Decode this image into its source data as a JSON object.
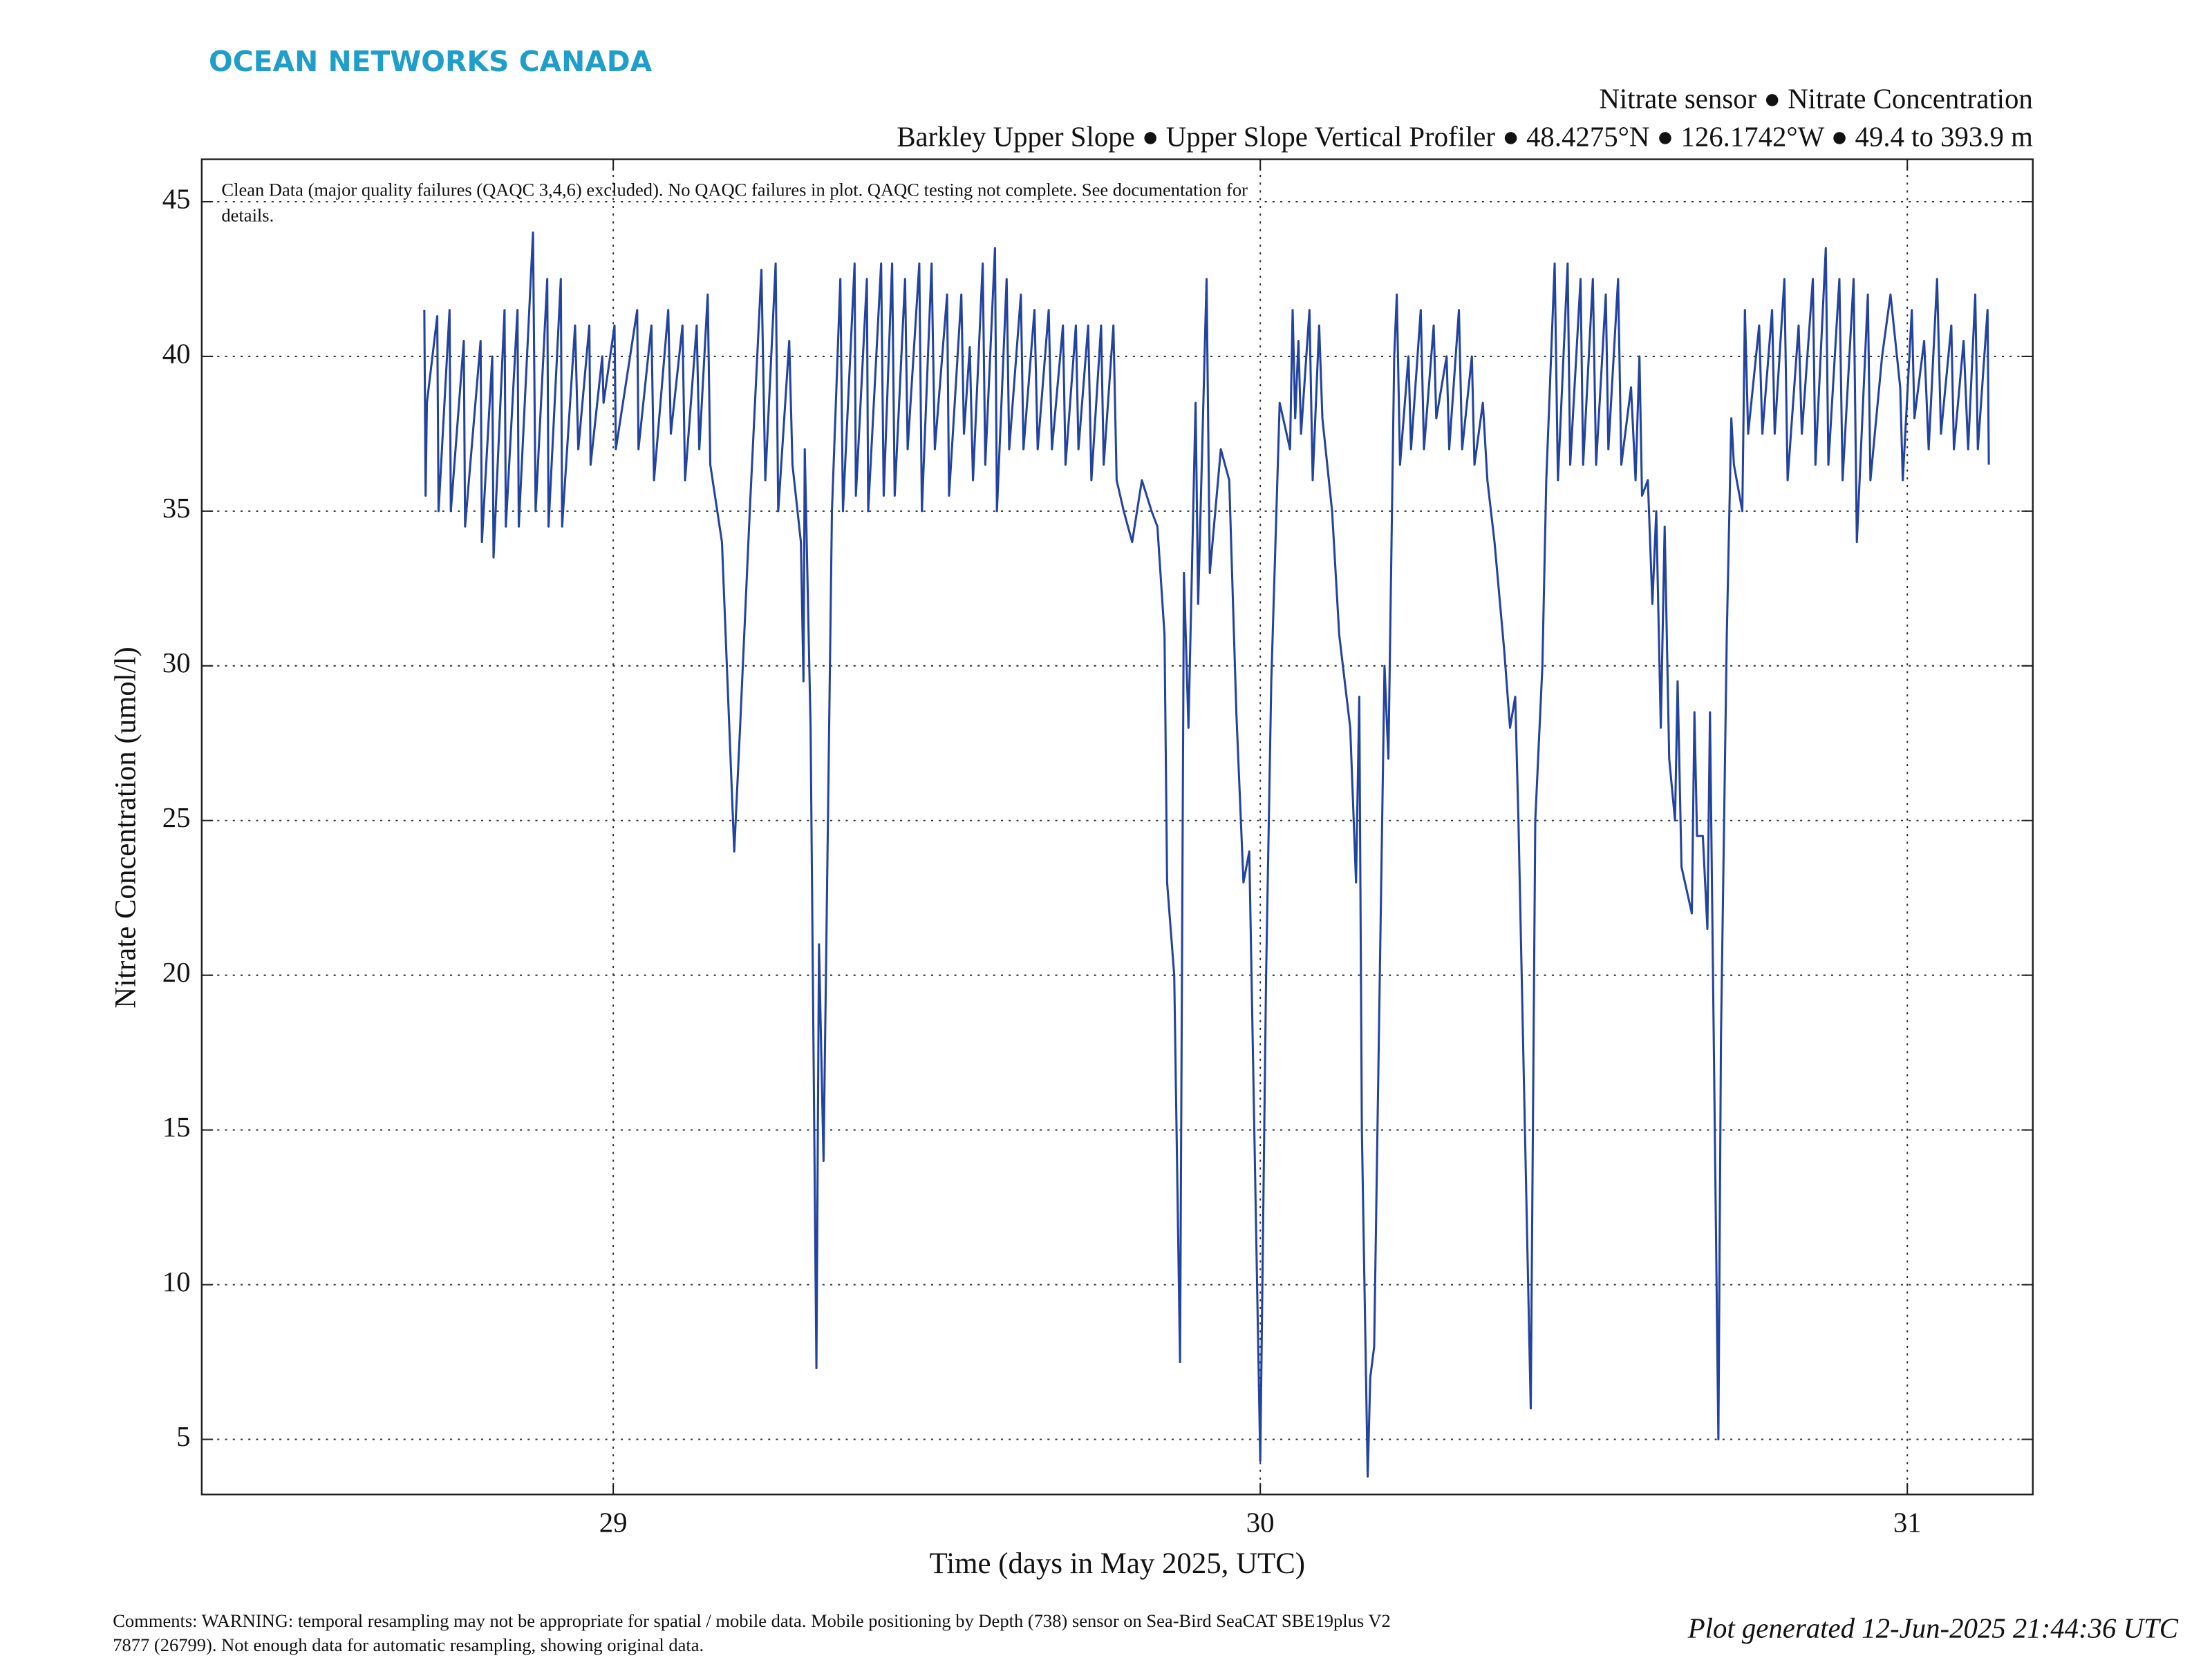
{
  "brand": "OCEAN NETWORKS CANADA",
  "chart_data": {
    "type": "line",
    "title": "Nitrate sensor ● Nitrate Concentration",
    "subtitle": "Barkley Upper Slope ● Upper Slope Vertical Profiler ● 48.4275°N ● 126.1742°W ● 49.4 to 393.9 m",
    "annotation": [
      "Clean Data (major quality failures (QAQC 3,4,6) excluded). No QAQC failures in plot. QAQC testing not complete. See documentation for",
      "details."
    ],
    "x_label": "Time (days in May 2025, UTC)",
    "y_label": "Nitrate Concentration (umol/l)",
    "color": "#2343a0",
    "grid": true,
    "xlim": [
      28.364,
      31.194
    ],
    "ylim": [
      3.22,
      46.37
    ],
    "xticks": [
      29,
      30,
      31
    ],
    "yticks": [
      5,
      10,
      15,
      20,
      25,
      30,
      35,
      40,
      45
    ],
    "x": [
      28.708,
      28.71,
      28.712,
      28.728,
      28.73,
      28.747,
      28.749,
      28.769,
      28.771,
      28.795,
      28.797,
      28.813,
      28.815,
      28.832,
      28.834,
      28.852,
      28.854,
      28.876,
      28.88,
      28.898,
      28.9,
      28.919,
      28.921,
      28.941,
      28.946,
      28.963,
      28.965,
      28.983,
      28.985,
      29.002,
      29.004,
      29.037,
      29.039,
      29.059,
      29.063,
      29.085,
      29.089,
      29.107,
      29.111,
      29.129,
      29.133,
      29.146,
      29.15,
      29.168,
      29.187,
      29.196,
      29.211,
      29.229,
      29.235,
      29.251,
      29.255,
      29.272,
      29.277,
      29.29,
      29.294,
      29.296,
      29.305,
      29.314,
      29.318,
      29.325,
      29.338,
      29.351,
      29.355,
      29.373,
      29.375,
      29.392,
      29.394,
      29.414,
      29.418,
      29.431,
      29.435,
      29.451,
      29.455,
      29.473,
      29.477,
      29.492,
      29.497,
      29.516,
      29.519,
      29.538,
      29.542,
      29.551,
      29.556,
      29.571,
      29.575,
      29.59,
      29.593,
      29.608,
      29.612,
      29.63,
      29.634,
      29.651,
      29.656,
      29.673,
      29.678,
      29.695,
      29.699,
      29.715,
      29.719,
      29.734,
      29.739,
      29.754,
      29.758,
      29.773,
      29.778,
      29.789,
      29.802,
      29.817,
      29.832,
      29.841,
      29.852,
      29.856,
      29.867,
      29.876,
      29.882,
      29.889,
      29.9,
      29.904,
      29.917,
      29.922,
      29.939,
      29.952,
      29.963,
      29.974,
      29.983,
      30.0,
      30.009,
      30.017,
      30.03,
      30.046,
      30.05,
      30.054,
      30.059,
      30.063,
      30.076,
      30.081,
      30.091,
      30.096,
      30.111,
      30.122,
      30.139,
      30.148,
      30.153,
      30.157,
      30.166,
      30.17,
      30.176,
      30.192,
      30.198,
      30.207,
      30.211,
      30.216,
      30.229,
      30.233,
      30.248,
      30.253,
      30.268,
      30.272,
      30.288,
      30.292,
      30.307,
      30.312,
      30.327,
      30.331,
      30.344,
      30.351,
      30.362,
      30.377,
      30.386,
      30.394,
      30.399,
      30.418,
      30.425,
      30.436,
      30.442,
      30.455,
      30.46,
      30.475,
      30.479,
      30.495,
      30.499,
      30.514,
      30.519,
      30.534,
      30.538,
      30.553,
      30.558,
      30.573,
      30.58,
      30.586,
      30.59,
      30.599,
      30.606,
      30.612,
      30.619,
      30.625,
      30.632,
      30.641,
      30.645,
      30.651,
      30.667,
      30.671,
      30.675,
      30.684,
      30.691,
      30.695,
      30.708,
      30.712,
      30.721,
      30.728,
      30.732,
      30.745,
      30.749,
      30.754,
      30.771,
      30.776,
      30.791,
      30.795,
      30.81,
      30.815,
      30.832,
      30.837,
      30.854,
      30.858,
      30.874,
      30.878,
      30.895,
      30.9,
      30.917,
      30.922,
      30.939,
      30.943,
      30.961,
      30.974,
      30.989,
      30.993,
      31.007,
      31.011,
      31.026,
      31.033,
      31.046,
      31.052,
      31.068,
      31.072,
      31.087,
      31.094,
      31.105,
      31.109,
      31.124,
      31.126
    ],
    "values": [
      41.5,
      35.5,
      38.5,
      41.3,
      35,
      41.5,
      35,
      40.5,
      34.5,
      40.5,
      34,
      40,
      33.5,
      41.5,
      34.5,
      41.5,
      34.5,
      44,
      35,
      42.5,
      34.5,
      42.5,
      34.5,
      41,
      37,
      41,
      36.5,
      40,
      38.5,
      41,
      37,
      41.5,
      37,
      41,
      36,
      41.5,
      37.5,
      41,
      36,
      41,
      37,
      42,
      36.5,
      34,
      24,
      28,
      35,
      42.8,
      36,
      43,
      35,
      40.5,
      36.5,
      34,
      29.5,
      37,
      28,
      7.3,
      21,
      14,
      35,
      42.5,
      35,
      43,
      35.5,
      42.5,
      35,
      43,
      35.5,
      43,
      35.5,
      42.5,
      37,
      43,
      35,
      43,
      37,
      42,
      35.5,
      42,
      37.5,
      40.3,
      36,
      43,
      36.5,
      43.5,
      35,
      42.5,
      37,
      42,
      37,
      41.5,
      37,
      41.5,
      37,
      41,
      36.5,
      41,
      37,
      41,
      36,
      41,
      36.5,
      41,
      36,
      35,
      34,
      36,
      35,
      34.5,
      31,
      23,
      20,
      7.5,
      33,
      28,
      38.5,
      32,
      42.5,
      33,
      37,
      36,
      28.5,
      23,
      24,
      4.3,
      20,
      29.5,
      38.5,
      37,
      41.5,
      38,
      40.5,
      37.5,
      41.5,
      36,
      41,
      38,
      35,
      31,
      28,
      23,
      29,
      15,
      3.8,
      7,
      8,
      30,
      27,
      40,
      42,
      36.5,
      40,
      37,
      41.5,
      37,
      41,
      38,
      40,
      37,
      41.5,
      37,
      40,
      36.5,
      38.5,
      36,
      34,
      30.5,
      28,
      29,
      25,
      6,
      25,
      30,
      36,
      43,
      36,
      43,
      36.5,
      42.5,
      36.5,
      42.5,
      36.5,
      42,
      37,
      42.5,
      36.5,
      39,
      36,
      40,
      35.5,
      36,
      32,
      35,
      28,
      34.5,
      27,
      25,
      29.5,
      23.5,
      22,
      28.5,
      24.5,
      24.5,
      21.5,
      28.5,
      5,
      18,
      31,
      38,
      36.5,
      35,
      41.5,
      37.5,
      41,
      37.5,
      41.5,
      37.5,
      42.5,
      36,
      41,
      37.5,
      42.5,
      36.5,
      43.5,
      36.5,
      42.5,
      36,
      42.5,
      34,
      42,
      36,
      40,
      42,
      39,
      36,
      41.5,
      38,
      40.5,
      37,
      42.5,
      37.5,
      41,
      37,
      40.5,
      37,
      42,
      37,
      41.5,
      36.5
    ]
  },
  "footer": {
    "comments": [
      "Comments: WARNING: temporal resampling may not be appropriate for spatial / mobile data. Mobile positioning by Depth (738) sensor on Sea-Bird SeaCAT SBE19plus V2",
      "7877 (26799). Not enough data for automatic resampling, showing original data."
    ],
    "generated": "Plot generated 12-Jun-2025 21:44:36 UTC"
  }
}
